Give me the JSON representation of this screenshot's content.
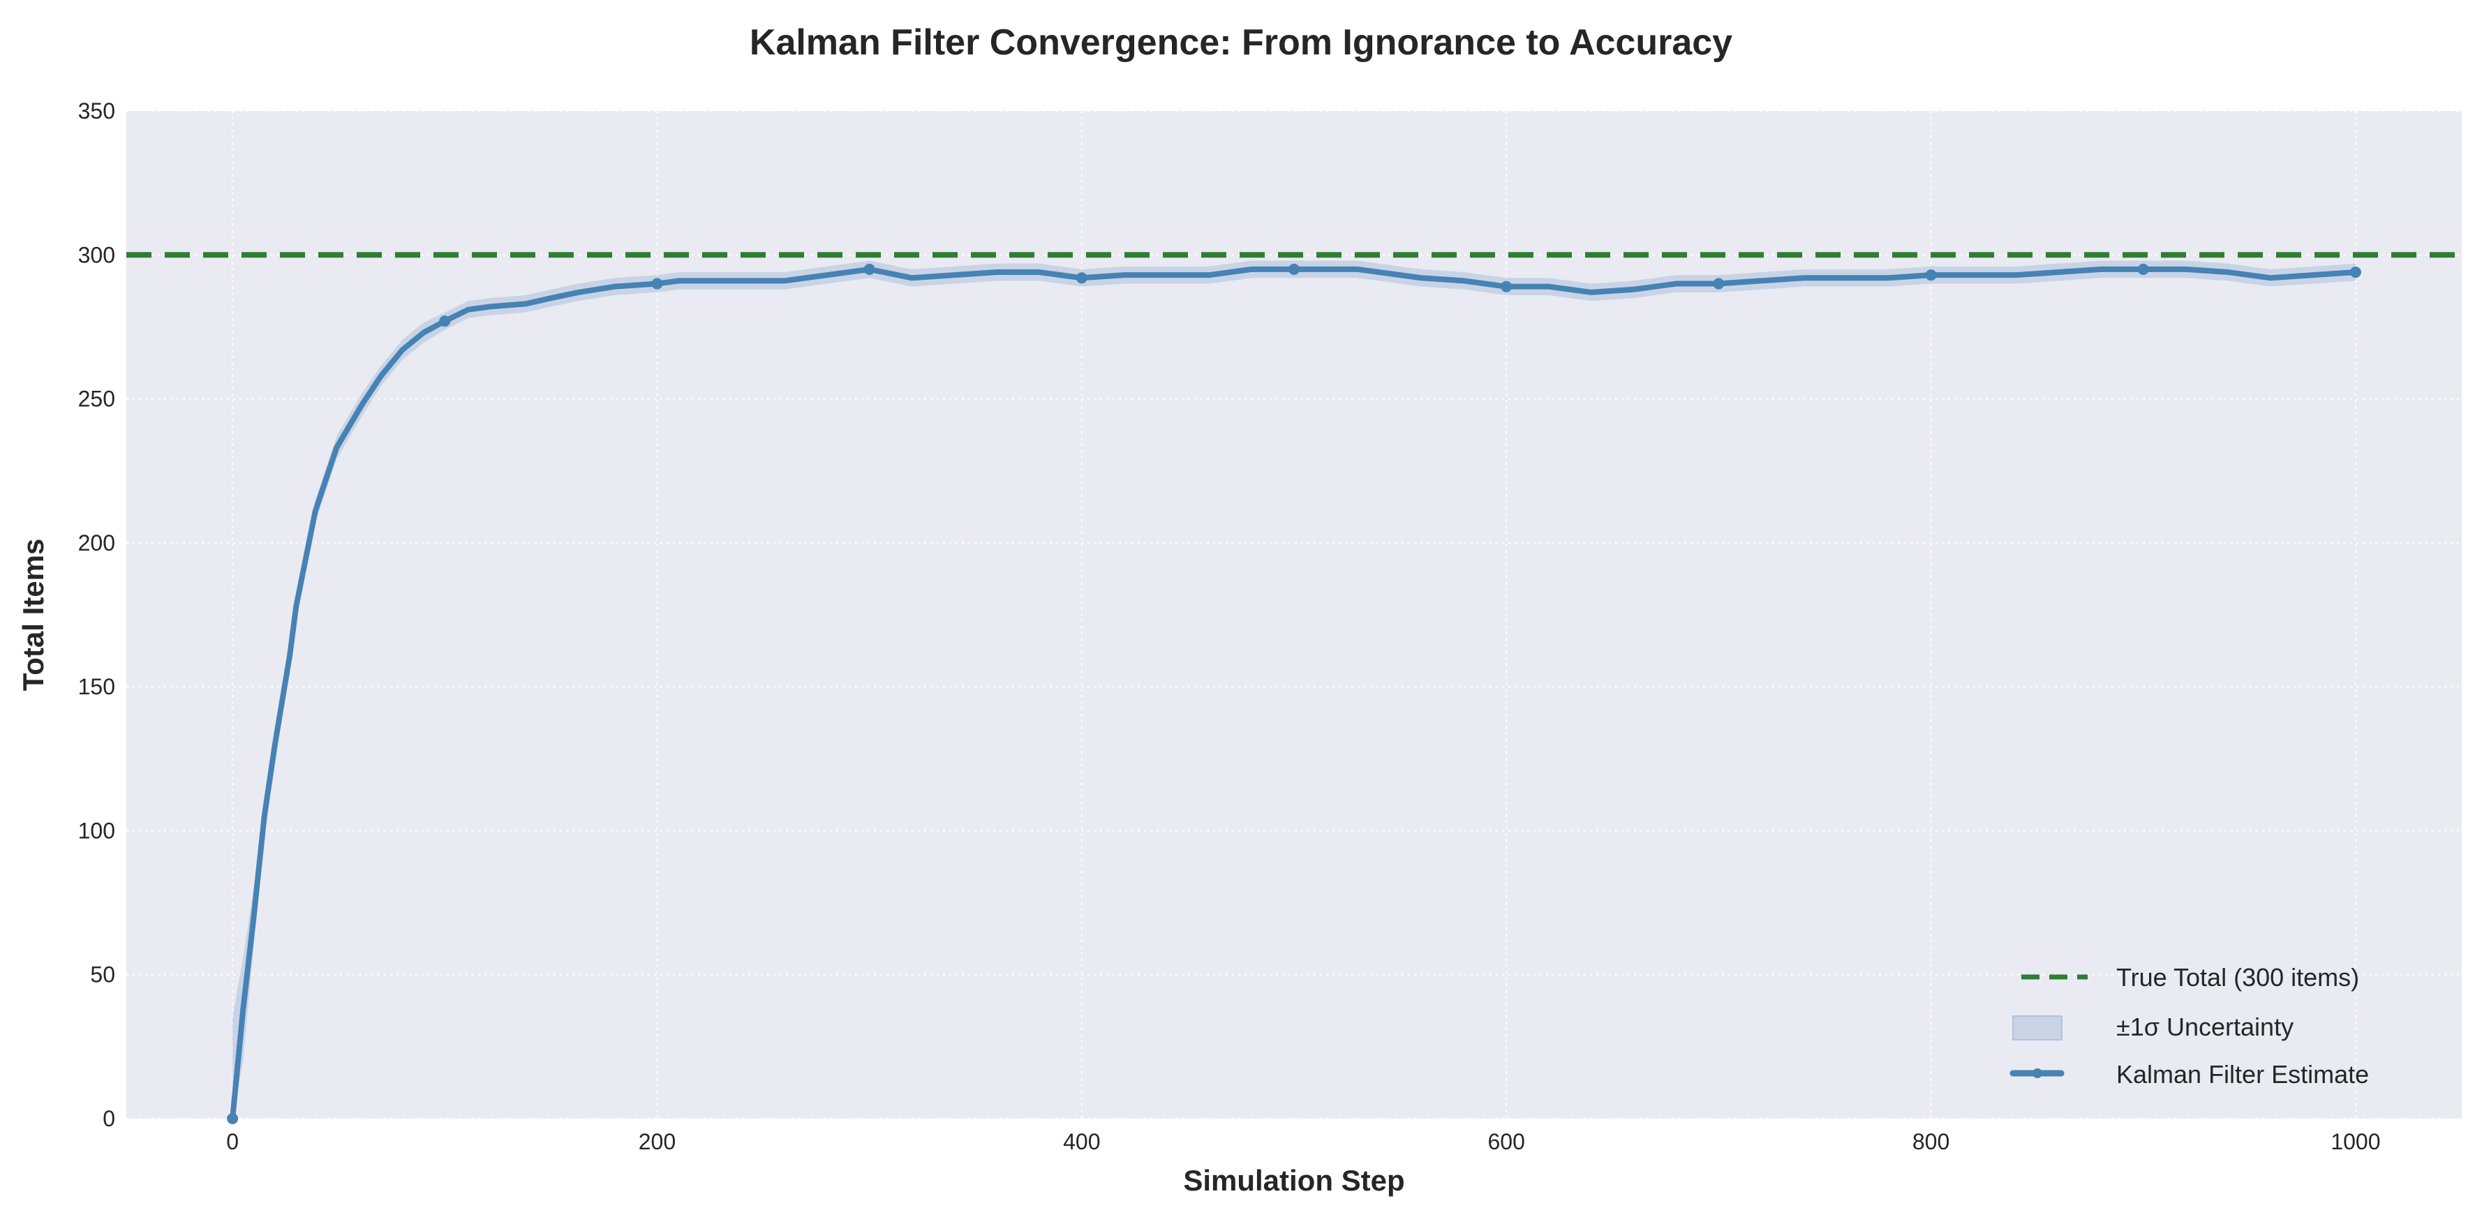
{
  "chart_data": {
    "type": "line",
    "title": "Kalman Filter Convergence: From Ignorance to Accuracy",
    "xlabel": "Simulation Step",
    "ylabel": "Total Items",
    "xlim": [
      -50,
      1050
    ],
    "ylim": [
      0,
      350
    ],
    "xticks": [
      0,
      200,
      400,
      600,
      800,
      1000
    ],
    "yticks": [
      0,
      50,
      100,
      150,
      200,
      250,
      300,
      350
    ],
    "grid": true,
    "legend_position": "bottom-right",
    "colors": {
      "true_total": "#2E7D32",
      "estimate": "#4682B4",
      "uncertainty": "#B0C4DE",
      "plot_bg": "#EAEAF2"
    },
    "reference_line": {
      "name": "True Total (300 items)",
      "y": 300,
      "style": "dashed"
    },
    "uncertainty_band": {
      "name": "±1σ Uncertainty"
    },
    "series": [
      {
        "name": "Kalman Filter Estimate",
        "marker_every": 100,
        "x": [
          0,
          5,
          10,
          15,
          20,
          27,
          30,
          39,
          49,
          61,
          70,
          80,
          90,
          100,
          111,
          121,
          138,
          150,
          163,
          180,
          200,
          210,
          240,
          260,
          280,
          300,
          320,
          340,
          360,
          380,
          400,
          420,
          440,
          460,
          480,
          500,
          520,
          530,
          560,
          580,
          600,
          620,
          640,
          660,
          680,
          700,
          720,
          740,
          760,
          780,
          800,
          820,
          840,
          860,
          880,
          900,
          920,
          940,
          960,
          980,
          1000
        ],
        "y": [
          0,
          38,
          70,
          105,
          130,
          161,
          178,
          211,
          233,
          248,
          258,
          267,
          273,
          277,
          281,
          282,
          283,
          285,
          287,
          289,
          290,
          291,
          291,
          291,
          293,
          295,
          292,
          293,
          294,
          294,
          292,
          293,
          293,
          293,
          295,
          295,
          295,
          295,
          292,
          291,
          289,
          289,
          287,
          288,
          290,
          290,
          291,
          292,
          292,
          292,
          293,
          293,
          293,
          294,
          295,
          295,
          295,
          294,
          292,
          293,
          294
        ],
        "sigma": [
          35,
          18,
          10,
          7,
          6,
          5,
          5,
          4,
          4,
          4,
          3.5,
          3.5,
          3.5,
          3,
          3,
          3,
          3,
          3,
          3,
          3,
          3,
          3,
          3,
          3,
          3,
          3,
          3,
          3,
          3,
          3,
          3,
          3,
          3,
          3,
          3,
          3,
          3,
          3,
          3,
          3,
          3,
          3,
          3,
          3,
          3,
          3,
          3,
          3,
          3,
          3,
          3,
          3,
          3,
          3,
          3,
          3,
          3,
          3,
          3,
          3,
          3
        ]
      }
    ]
  }
}
